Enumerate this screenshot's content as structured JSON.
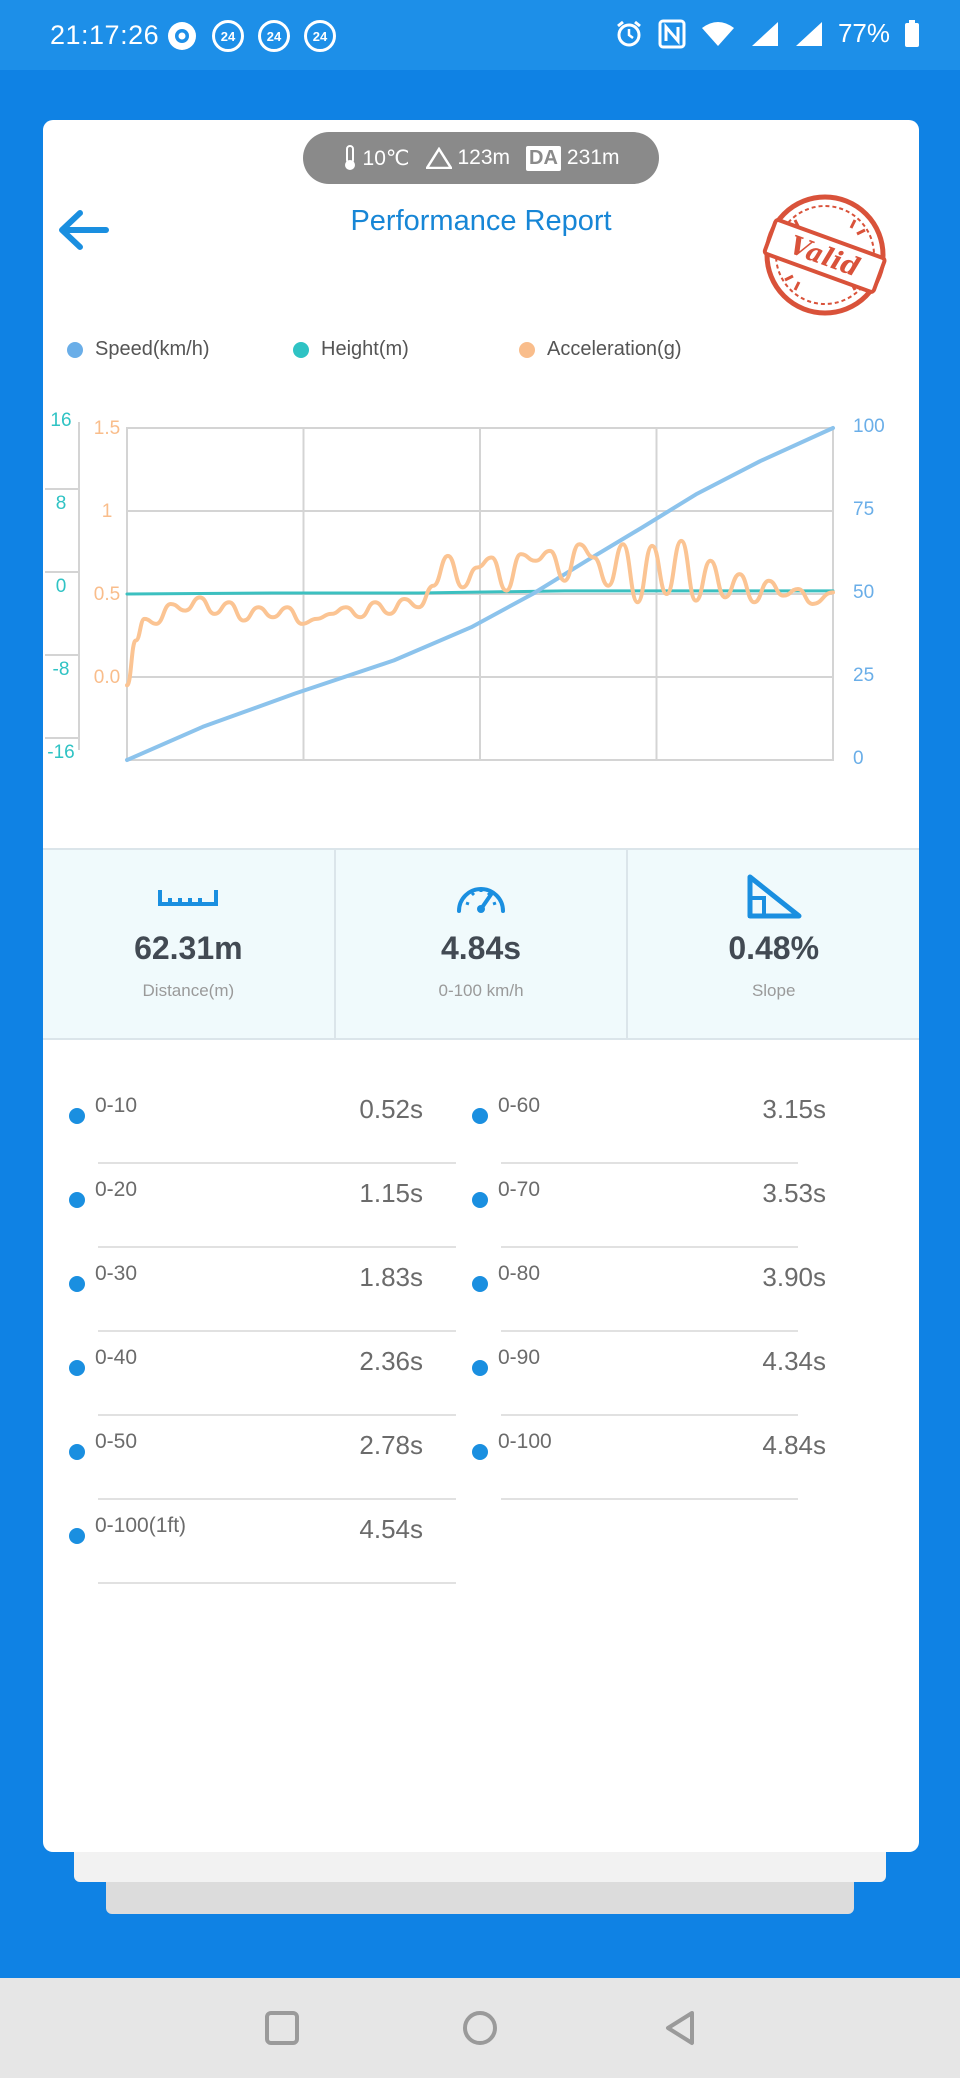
{
  "status_bar": {
    "time": "21:17:26",
    "notif_badge": "24",
    "battery": "77%"
  },
  "env": {
    "temperature": "10℃",
    "altitude": "123m",
    "da_label": "DA",
    "density_altitude": "231m"
  },
  "header": {
    "title": "Performance Report",
    "stamp_text": "Valid"
  },
  "legend": [
    {
      "label": "Speed(km/h)",
      "color": "#6aaee8"
    },
    {
      "label": "Height(m)",
      "color": "#2fc3c4"
    },
    {
      "label": "Acceleration(g)",
      "color": "#f9bd8b"
    }
  ],
  "chart_data": {
    "type": "line",
    "x_range": [
      0,
      4.84
    ],
    "grid": true,
    "axes": {
      "height_ticks": [
        "16",
        "8",
        "0",
        "-8",
        "-16"
      ],
      "accel_ticks": [
        "1.5",
        "1",
        "0.5",
        "0.0"
      ],
      "speed_ticks": [
        "100",
        "75",
        "50",
        "25",
        "0"
      ]
    },
    "height_range": [
      -16,
      16
    ],
    "accel_range": [
      -0.5,
      1.5
    ],
    "speed_range": [
      0,
      100
    ],
    "series": [
      {
        "name": "Speed(km/h)",
        "color": "#8cc3ec",
        "x": [
          0,
          0.52,
          1.15,
          1.83,
          2.36,
          2.78,
          3.15,
          3.53,
          3.9,
          4.34,
          4.84
        ],
        "y": [
          0,
          10,
          20,
          30,
          40,
          50,
          60,
          70,
          80,
          90,
          100
        ]
      },
      {
        "name": "Height(m)",
        "color": "#3cc0c0",
        "x": [
          0,
          1.0,
          2.0,
          3.0,
          4.0,
          4.84
        ],
        "y": [
          0,
          0.1,
          0.1,
          0.3,
          0.3,
          0.3
        ]
      },
      {
        "name": "Acceleration(g)",
        "color": "#fbc493",
        "x": [
          0,
          0.06,
          0.12,
          0.2,
          0.3,
          0.4,
          0.5,
          0.6,
          0.7,
          0.8,
          0.9,
          1.0,
          1.1,
          1.2,
          1.3,
          1.4,
          1.5,
          1.6,
          1.7,
          1.8,
          1.9,
          2.0,
          2.1,
          2.2,
          2.3,
          2.4,
          2.5,
          2.6,
          2.7,
          2.8,
          2.9,
          3.0,
          3.1,
          3.2,
          3.3,
          3.4,
          3.5,
          3.6,
          3.7,
          3.8,
          3.9,
          4.0,
          4.1,
          4.2,
          4.3,
          4.4,
          4.5,
          4.6,
          4.7,
          4.84
        ],
        "y": [
          -0.05,
          0.22,
          0.35,
          0.32,
          0.44,
          0.4,
          0.48,
          0.38,
          0.45,
          0.34,
          0.42,
          0.36,
          0.42,
          0.32,
          0.35,
          0.38,
          0.42,
          0.36,
          0.45,
          0.38,
          0.47,
          0.42,
          0.55,
          0.73,
          0.54,
          0.66,
          0.72,
          0.52,
          0.74,
          0.7,
          0.76,
          0.58,
          0.8,
          0.72,
          0.55,
          0.8,
          0.45,
          0.79,
          0.5,
          0.82,
          0.46,
          0.7,
          0.48,
          0.62,
          0.45,
          0.58,
          0.49,
          0.53,
          0.44,
          0.51
        ]
      }
    ]
  },
  "stats": [
    {
      "value": "62.31m",
      "label": "Distance(m)",
      "icon": "ruler-icon"
    },
    {
      "value": "4.84s",
      "label": "0-100 km/h",
      "icon": "speedometer-icon"
    },
    {
      "value": "0.48%",
      "label": "Slope",
      "icon": "slope-icon"
    }
  ],
  "times_left": [
    {
      "label": "0-10",
      "value": "0.52s"
    },
    {
      "label": "0-20",
      "value": "1.15s"
    },
    {
      "label": "0-30",
      "value": "1.83s"
    },
    {
      "label": "0-40",
      "value": "2.36s"
    },
    {
      "label": "0-50",
      "value": "2.78s"
    },
    {
      "label": "0-100(1ft)",
      "value": "4.54s"
    }
  ],
  "times_right": [
    {
      "label": "0-60",
      "value": "3.15s"
    },
    {
      "label": "0-70",
      "value": "3.53s"
    },
    {
      "label": "0-80",
      "value": "3.90s"
    },
    {
      "label": "0-90",
      "value": "4.34s"
    },
    {
      "label": "0-100",
      "value": "4.84s"
    }
  ]
}
